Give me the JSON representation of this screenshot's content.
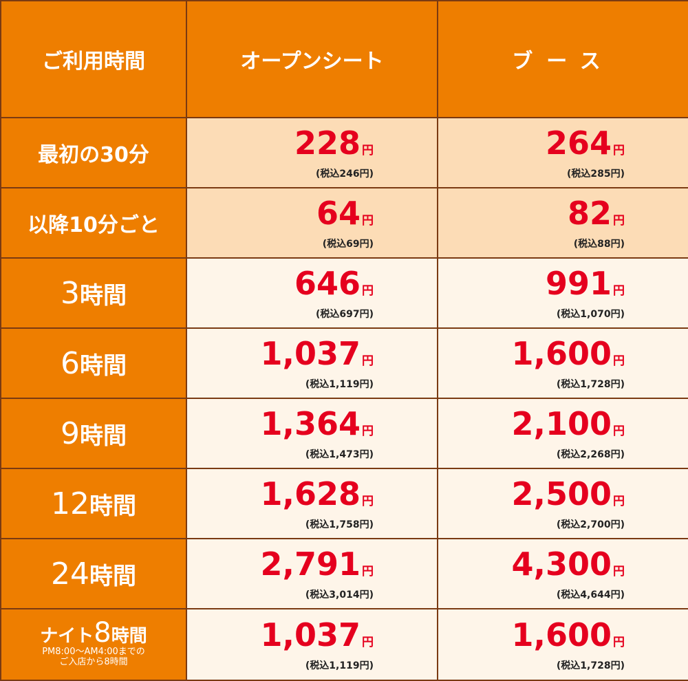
{
  "header": {
    "time_label": "ご利用時間",
    "open_seat": "オープンシート",
    "booth": "ブース"
  },
  "rows": [
    {
      "label": "最初の30分",
      "open": {
        "price": "228",
        "unit": "円",
        "tax": "(税込246円)"
      },
      "booth": {
        "price": "264",
        "unit": "円",
        "tax": "(税込285円)"
      }
    },
    {
      "label": "以降10分ごと",
      "open": {
        "price": "64",
        "unit": "円",
        "tax": "(税込69円)"
      },
      "booth": {
        "price": "82",
        "unit": "円",
        "tax": "(税込88円)"
      }
    },
    {
      "num": "3",
      "unit": "時間",
      "open": {
        "price": "646",
        "unit": "円",
        "tax": "(税込697円)"
      },
      "booth": {
        "price": "991",
        "unit": "円",
        "tax": "(税込1,070円)"
      }
    },
    {
      "num": "6",
      "unit": "時間",
      "open": {
        "price": "1,037",
        "unit": "円",
        "tax": "(税込1,119円)"
      },
      "booth": {
        "price": "1,600",
        "unit": "円",
        "tax": "(税込1,728円)"
      }
    },
    {
      "num": "9",
      "unit": "時間",
      "open": {
        "price": "1,364",
        "unit": "円",
        "tax": "(税込1,473円)"
      },
      "booth": {
        "price": "2,100",
        "unit": "円",
        "tax": "(税込2,268円)"
      }
    },
    {
      "num": "12",
      "unit": "時間",
      "open": {
        "price": "1,628",
        "unit": "円",
        "tax": "(税込1,758円)"
      },
      "booth": {
        "price": "2,500",
        "unit": "円",
        "tax": "(税込2,700円)"
      }
    },
    {
      "num": "24",
      "unit": "時間",
      "open": {
        "price": "2,791",
        "unit": "円",
        "tax": "(税込3,014円)"
      },
      "booth": {
        "price": "4,300",
        "unit": "円",
        "tax": "(税込4,644円)"
      }
    },
    {
      "prefix": "ナイト",
      "num": "8",
      "unit": "時間",
      "note1": "PM8:00～AM4:00までの",
      "note2": "ご入店から8時間",
      "open": {
        "price": "1,037",
        "unit": "円",
        "tax": "(税込1,119円)"
      },
      "booth": {
        "price": "1,600",
        "unit": "円",
        "tax": "(税込1,728円)"
      }
    }
  ],
  "colors": {
    "header_orange": "#ee7e00",
    "border_brown": "#7a3a12",
    "price_red": "#e5001e",
    "light_peach": "#fcdcb6",
    "pale_cream": "#fef5e9"
  }
}
